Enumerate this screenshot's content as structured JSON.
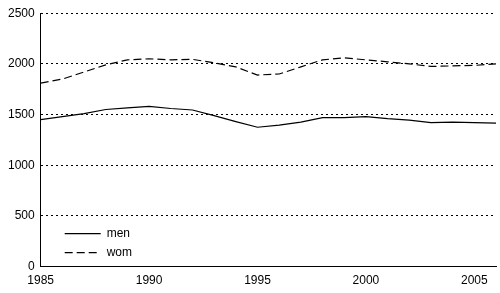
{
  "chart_data": {
    "type": "line",
    "x": [
      1985,
      1986,
      1987,
      1988,
      1989,
      1990,
      1991,
      1992,
      1993,
      1994,
      1995,
      1996,
      1997,
      1998,
      1999,
      2000,
      2001,
      2002,
      2003,
      2004,
      2005,
      2006
    ],
    "series": [
      {
        "name": "men",
        "color": "#000000",
        "line_style": "solid",
        "values": [
          1450,
          1480,
          1510,
          1550,
          1565,
          1580,
          1560,
          1545,
          1490,
          1430,
          1375,
          1395,
          1425,
          1470,
          1470,
          1480,
          1460,
          1445,
          1420,
          1425,
          1420,
          1415
        ]
      },
      {
        "name": "wom",
        "color": "#000000",
        "line_style": "dashed",
        "values": [
          1810,
          1850,
          1920,
          1990,
          2040,
          2050,
          2040,
          2045,
          2010,
          1970,
          1890,
          1900,
          1970,
          2040,
          2060,
          2040,
          2020,
          2000,
          1975,
          1980,
          1985,
          2000
        ]
      }
    ],
    "xlim": [
      1985,
      2006
    ],
    "xticks": [
      1985,
      1990,
      1995,
      2000,
      2005
    ],
    "ylim": [
      0,
      2500
    ],
    "yticks": [
      0,
      500,
      1000,
      1500,
      2000,
      2500
    ],
    "grid": true,
    "legend": "lower left"
  }
}
